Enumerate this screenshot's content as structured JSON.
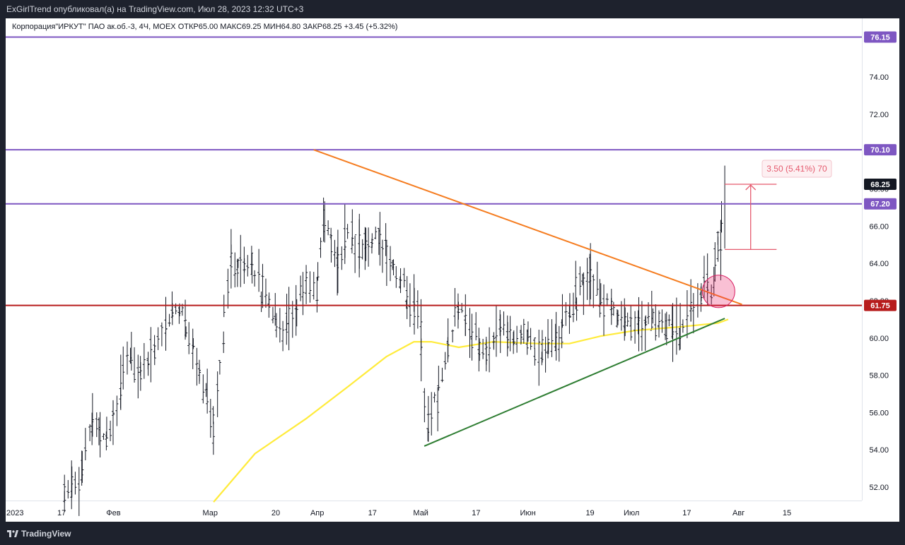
{
  "header": {
    "publisher": "ExGirlTrend опубликовал(а) на TradingView.com, Июл 28, 2023 12:32 UTC+3"
  },
  "legend": {
    "symbol": "Корпорация\"ИРКУТ\" ПАО ак.об.-3, 4Ч, MOEX",
    "open": "ОТКР65.00",
    "high": "МАКС69.25",
    "low": "МИН64.80",
    "close": "ЗАКР68.25",
    "change": "+3.45 (+5.32%)"
  },
  "footer": {
    "brand": "TradingView"
  },
  "colors": {
    "level": "#7e57c2",
    "support": "#b71c1c",
    "descending_trend": "#f57c1f",
    "ascending_trend": "#2e7d32",
    "moving_average": "#ffeb3b",
    "measure": "#e55a6e",
    "bars": "#131722"
  },
  "chart_data": {
    "type": "ohlc",
    "symbol": "Корпорация\"ИРКУТ\" ПАО ак.об.-3",
    "timeframe": "4Ч",
    "exchange": "MOEX",
    "ylim": [
      51.2,
      77.4
    ],
    "y_ticks": [
      "52.00",
      "54.00",
      "56.00",
      "58.00",
      "60.00",
      "62.00",
      "64.00",
      "66.00",
      "68.00",
      "72.00",
      "74.00"
    ],
    "x_ticks": [
      {
        "label": "2023",
        "date": "2023-01-01"
      },
      {
        "label": "17",
        "date": "2023-01-17"
      },
      {
        "label": "Фев",
        "date": "2023-02-01"
      },
      {
        "label": "Мар",
        "date": "2023-03-01"
      },
      {
        "label": "20",
        "date": "2023-03-20"
      },
      {
        "label": "Апр",
        "date": "2023-04-01"
      },
      {
        "label": "17",
        "date": "2023-04-17"
      },
      {
        "label": "Май",
        "date": "2023-05-01"
      },
      {
        "label": "17",
        "date": "2023-05-17"
      },
      {
        "label": "Июн",
        "date": "2023-06-01"
      },
      {
        "label": "19",
        "date": "2023-06-19"
      },
      {
        "label": "Июл",
        "date": "2023-07-01"
      },
      {
        "label": "17",
        "date": "2023-07-17"
      },
      {
        "label": "Авг",
        "date": "2023-08-01"
      },
      {
        "label": "15",
        "date": "2023-08-15"
      }
    ],
    "last_price": 68.25,
    "last_price_label": "68.25",
    "series": [
      {
        "date": "2023-01-18",
        "close": 51.3
      },
      {
        "date": "2023-01-23",
        "close": 52.8
      },
      {
        "date": "2023-01-26",
        "close": 55.5
      },
      {
        "date": "2023-01-30",
        "close": 54.9
      },
      {
        "date": "2023-02-03",
        "close": 56.8
      },
      {
        "date": "2023-02-06",
        "close": 58.9
      },
      {
        "date": "2023-02-09",
        "close": 58.4
      },
      {
        "date": "2023-02-13",
        "close": 59.3
      },
      {
        "date": "2023-02-16",
        "close": 60.6
      },
      {
        "date": "2023-02-20",
        "close": 61.9
      },
      {
        "date": "2023-02-24",
        "close": 59.8
      },
      {
        "date": "2023-02-28",
        "close": 57.1
      },
      {
        "date": "2023-03-02",
        "close": 54.7
      },
      {
        "date": "2023-03-05",
        "close": 60.4
      },
      {
        "date": "2023-03-07",
        "close": 64.4
      },
      {
        "date": "2023-03-09",
        "close": 63.6
      },
      {
        "date": "2023-03-13",
        "close": 64.2
      },
      {
        "date": "2023-03-16",
        "close": 62.7
      },
      {
        "date": "2023-03-20",
        "close": 61.3
      },
      {
        "date": "2023-03-23",
        "close": 60.5
      },
      {
        "date": "2023-03-26",
        "close": 61.7
      },
      {
        "date": "2023-03-29",
        "close": 62.9
      },
      {
        "date": "2023-04-01",
        "close": 62.5
      },
      {
        "date": "2023-04-03",
        "close": 66.2
      },
      {
        "date": "2023-04-07",
        "close": 64.2
      },
      {
        "date": "2023-04-11",
        "close": 65.6
      },
      {
        "date": "2023-04-15",
        "close": 64.8
      },
      {
        "date": "2023-04-19",
        "close": 65.3
      },
      {
        "date": "2023-04-23",
        "close": 64.1
      },
      {
        "date": "2023-04-27",
        "close": 62.4
      },
      {
        "date": "2023-05-01",
        "close": 61.0
      },
      {
        "date": "2023-05-03",
        "close": 55.2
      },
      {
        "date": "2023-05-06",
        "close": 56.9
      },
      {
        "date": "2023-05-09",
        "close": 59.4
      },
      {
        "date": "2023-05-12",
        "close": 61.5
      },
      {
        "date": "2023-05-16",
        "close": 60.5
      },
      {
        "date": "2023-05-20",
        "close": 59.0
      },
      {
        "date": "2023-05-24",
        "close": 60.8
      },
      {
        "date": "2023-05-28",
        "close": 59.9
      },
      {
        "date": "2023-06-01",
        "close": 60.1
      },
      {
        "date": "2023-06-05",
        "close": 58.9
      },
      {
        "date": "2023-06-09",
        "close": 59.7
      },
      {
        "date": "2023-06-13",
        "close": 61.2
      },
      {
        "date": "2023-06-17",
        "close": 62.9
      },
      {
        "date": "2023-06-19",
        "close": 64.1
      },
      {
        "date": "2023-06-22",
        "close": 62.2
      },
      {
        "date": "2023-06-25",
        "close": 61.4
      },
      {
        "date": "2023-06-29",
        "close": 61.0
      },
      {
        "date": "2023-07-03",
        "close": 60.6
      },
      {
        "date": "2023-07-07",
        "close": 61.1
      },
      {
        "date": "2023-07-11",
        "close": 60.8
      },
      {
        "date": "2023-07-15",
        "close": 60.3
      },
      {
        "date": "2023-07-18",
        "close": 61.4
      },
      {
        "date": "2023-07-21",
        "close": 62.0
      },
      {
        "date": "2023-07-23",
        "close": 63.1
      },
      {
        "date": "2023-07-25",
        "close": 62.6
      },
      {
        "date": "2023-07-26",
        "close": 65.5
      },
      {
        "date": "2023-07-27",
        "close": 64.8
      },
      {
        "date": "2023-07-28",
        "close": 68.25
      }
    ],
    "moving_average": [
      {
        "date": "2023-03-02",
        "value": 51.2
      },
      {
        "date": "2023-03-14",
        "value": 53.8
      },
      {
        "date": "2023-03-29",
        "value": 55.7
      },
      {
        "date": "2023-04-10",
        "value": 57.4
      },
      {
        "date": "2023-04-21",
        "value": 59.0
      },
      {
        "date": "2023-04-29",
        "value": 59.8
      },
      {
        "date": "2023-05-04",
        "value": 59.8
      },
      {
        "date": "2023-05-12",
        "value": 59.5
      },
      {
        "date": "2023-05-22",
        "value": 59.8
      },
      {
        "date": "2023-06-04",
        "value": 59.7
      },
      {
        "date": "2023-06-13",
        "value": 59.7
      },
      {
        "date": "2023-06-22",
        "value": 60.1
      },
      {
        "date": "2023-07-02",
        "value": 60.4
      },
      {
        "date": "2023-07-15",
        "value": 60.6
      },
      {
        "date": "2023-07-26",
        "value": 60.8
      },
      {
        "date": "2023-07-29",
        "value": 61.0
      }
    ],
    "horizontal_levels": [
      {
        "value": 76.15,
        "label": "76.15",
        "kind": "level"
      },
      {
        "value": 70.1,
        "label": "70.10",
        "kind": "level"
      },
      {
        "value": 67.2,
        "label": "67.20",
        "kind": "level"
      },
      {
        "value": 61.75,
        "label": "61.75",
        "kind": "support"
      }
    ],
    "trend_lines": [
      {
        "kind": "descending",
        "from": {
          "date": "2023-03-31",
          "value": 70.1
        },
        "to": {
          "date": "2023-08-02",
          "value": 61.8
        }
      },
      {
        "kind": "ascending",
        "from": {
          "date": "2023-05-02",
          "value": 54.2
        },
        "to": {
          "date": "2023-07-28",
          "value": 61.05
        }
      }
    ],
    "highlight": {
      "date": "2023-07-26",
      "value": 62.5
    },
    "measure": {
      "label": "3.50 (5.41%) 70",
      "from_value": 64.75,
      "to_value": 68.25,
      "start_date": "2023-07-28",
      "end_date": "2023-08-12"
    }
  }
}
